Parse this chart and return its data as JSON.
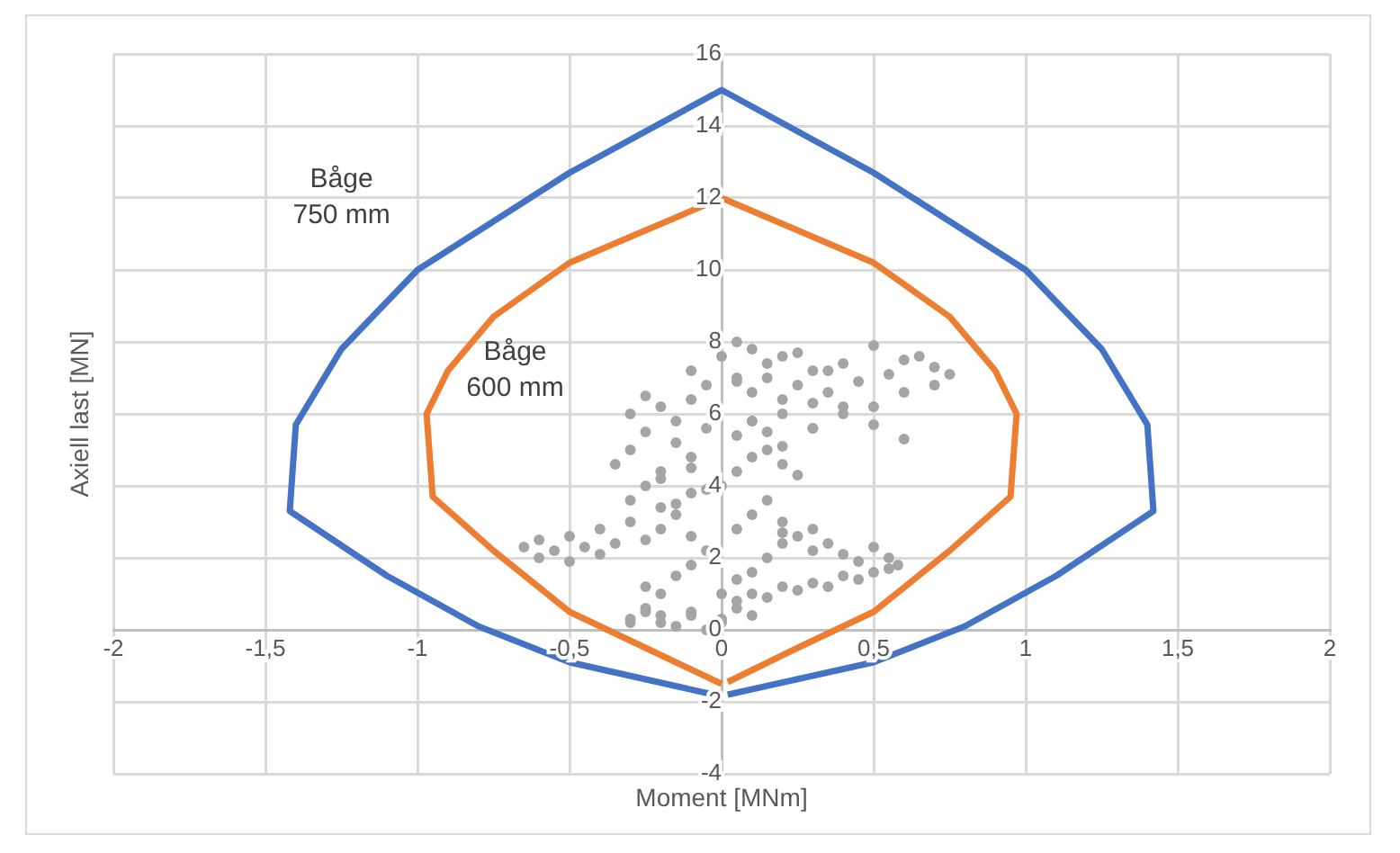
{
  "chart_data": {
    "type": "line",
    "xlabel": "Moment [MNm]",
    "ylabel": "Axiell last [MN]",
    "xlim": [
      -2,
      2
    ],
    "xticks": [
      -2,
      {
        "value": -1.5,
        "label": "-1,5"
      },
      -1,
      {
        "value": -0.5,
        "label": "-0,5"
      },
      0,
      {
        "value": 0.5,
        "label": "0,5"
      },
      1,
      {
        "value": 1.5,
        "label": "1,5"
      },
      2
    ],
    "ylim": [
      -4,
      16
    ],
    "yticks": [
      -4,
      -2,
      0,
      2,
      4,
      6,
      8,
      10,
      12,
      14,
      16
    ],
    "grid": true,
    "legend": false,
    "line_style": "solid",
    "series": [
      {
        "name": "Båge 750 mm",
        "color": "#4472c4",
        "marker": "none",
        "x": [
          0,
          -0.5,
          -0.8,
          -1.1,
          -1.42,
          -1.4,
          -1.25,
          -1,
          -0.5,
          0,
          0.5,
          1,
          1.25,
          1.4,
          1.42,
          1.1,
          0.8,
          0.5,
          0.02
        ],
        "values": [
          -1.85,
          -0.9,
          0.1,
          1.5,
          3.3,
          5.7,
          7.8,
          10,
          12.7,
          15,
          12.7,
          10,
          7.8,
          5.7,
          3.3,
          1.5,
          0.1,
          -0.9,
          -1.8
        ]
      },
      {
        "name": "Båge 600 mm",
        "color": "#ed7d31",
        "marker": "none",
        "x": [
          0,
          -0.25,
          -0.5,
          -0.75,
          -0.95,
          -0.97,
          -0.9,
          -0.75,
          -0.5,
          0,
          0.5,
          0.75,
          0.9,
          0.97,
          0.95,
          0.75,
          0.5,
          0.25,
          0.02
        ],
        "values": [
          -1.5,
          -0.5,
          0.5,
          2.2,
          3.7,
          6,
          7.2,
          8.7,
          10.2,
          12,
          10.2,
          8.7,
          7.2,
          6,
          3.7,
          2.2,
          0.5,
          -0.5,
          -1.45
        ]
      },
      {
        "type": "scatter",
        "color": "#a5a5a5",
        "marker": "circle",
        "x": [
          -0.65,
          -0.6,
          -0.55,
          -0.5,
          -0.45,
          -0.4,
          -0.35,
          -0.6,
          -0.5,
          -0.4,
          -0.3,
          -0.25,
          -0.2,
          -0.15,
          -0.1,
          -0.05,
          -0.3,
          -0.2,
          -0.1,
          -0.35,
          -0.3,
          -0.25,
          -0.2,
          -0.15,
          -0.1,
          -0.05,
          -0.3,
          -0.25,
          -0.2,
          -0.15,
          -0.1,
          -0.05,
          -0.25,
          -0.2,
          -0.15,
          -0.1,
          -0.05,
          -0.25,
          -0.2,
          -0.15,
          -0.1,
          -0.3,
          -0.25,
          -0.2,
          -0.1,
          0,
          0.05,
          0.1,
          0,
          0.05,
          0.1,
          0.15,
          0.2,
          0.05,
          0.1,
          0.15,
          0.2,
          0.25,
          0.3,
          0.35,
          0.4,
          0.45,
          0.5,
          0.55,
          0.58,
          0.1,
          0.2,
          0.3,
          0.4,
          0.5,
          0.55,
          0.05,
          0.15,
          0.25,
          0.35,
          0.45,
          0.2,
          0.3,
          0,
          0.05,
          0.1,
          0.15,
          0.2,
          0.25,
          0.05,
          0.1,
          0.15,
          0.2,
          0.3,
          0.05,
          0.1,
          0.2,
          0.3,
          0.4,
          0.5,
          0.6,
          0.7,
          0.75,
          0.1,
          0.2,
          0.3,
          0.4,
          0.5,
          0.6,
          0.7,
          0.15,
          0.25,
          0.35,
          0.45,
          0.55,
          0.65,
          0.1,
          0.2,
          0.3,
          0.4,
          0.5,
          0.6,
          0.05,
          0.15,
          0.25,
          0.35,
          -0.1,
          -0.05,
          0,
          -0.15,
          -0.2,
          -0.25,
          -0.3,
          -0.1,
          0,
          0.05
        ],
        "values": [
          2.3,
          2.5,
          2.2,
          2.6,
          2.3,
          2.8,
          2.4,
          2.0,
          1.9,
          2.1,
          3.0,
          2.5,
          2.8,
          3.2,
          2.6,
          2.2,
          3.6,
          3.4,
          3.8,
          4.6,
          5.0,
          5.5,
          4.4,
          5.2,
          4.8,
          5.6,
          6.0,
          6.5,
          6.2,
          5.8,
          6.4,
          6.8,
          4.0,
          4.2,
          3.5,
          4.5,
          3.9,
          1.2,
          1.0,
          1.5,
          1.8,
          0.3,
          0.5,
          0.2,
          0.4,
          0.2,
          0.6,
          0.4,
          1.0,
          1.4,
          1.6,
          2.0,
          2.4,
          2.8,
          3.2,
          3.6,
          3.0,
          2.6,
          2.2,
          2.4,
          2.1,
          1.9,
          2.3,
          2.0,
          1.8,
          1.0,
          1.2,
          1.3,
          1.5,
          1.6,
          1.7,
          0.8,
          0.9,
          1.1,
          1.2,
          1.4,
          2.7,
          2.8,
          4.0,
          4.4,
          4.8,
          5.0,
          4.6,
          4.3,
          5.4,
          5.8,
          5.5,
          5.1,
          5.6,
          7.0,
          6.6,
          6.0,
          6.3,
          6.0,
          6.2,
          6.6,
          6.8,
          7.1,
          7.8,
          7.6,
          7.2,
          7.4,
          7.9,
          7.5,
          7.3,
          7.0,
          6.8,
          6.6,
          6.9,
          7.1,
          7.6,
          5.8,
          6.4,
          5.6,
          6.2,
          5.7,
          5.3,
          6.9,
          7.4,
          7.7,
          7.2,
          0.5,
          0.0,
          0.3,
          0.1,
          0.4,
          0.6,
          0.2,
          7.2,
          7.6,
          8.0
        ]
      }
    ]
  }
}
